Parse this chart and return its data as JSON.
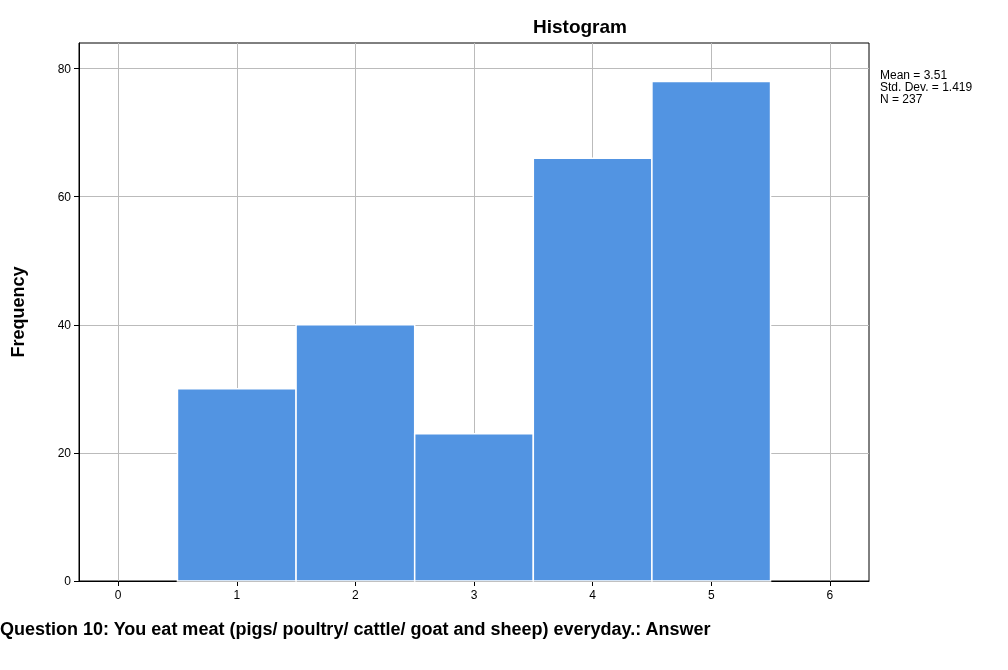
{
  "chart_data": {
    "type": "histogram",
    "title": "Histogram",
    "xlabel": "Question 10: You eat meat (pigs/ poultry/ cattle/ goat and sheep) everyday.: Answer",
    "ylabel": "Frequency",
    "bins": [
      0.5,
      1.5,
      2.5,
      3.5,
      4.5,
      5.5
    ],
    "values": [
      30,
      40,
      23,
      66,
      78
    ],
    "color": "#5294e2",
    "xlim": [
      -0.33,
      6.33
    ],
    "xticks": [
      0,
      1,
      2,
      3,
      4,
      5,
      6
    ],
    "ylim": [
      0,
      84
    ],
    "yticks": [
      0,
      20,
      40,
      60,
      80
    ],
    "grid": true,
    "annotations": [
      "Mean = 3.51",
      "Std. Dev. = 1.419",
      "N = 237"
    ]
  }
}
